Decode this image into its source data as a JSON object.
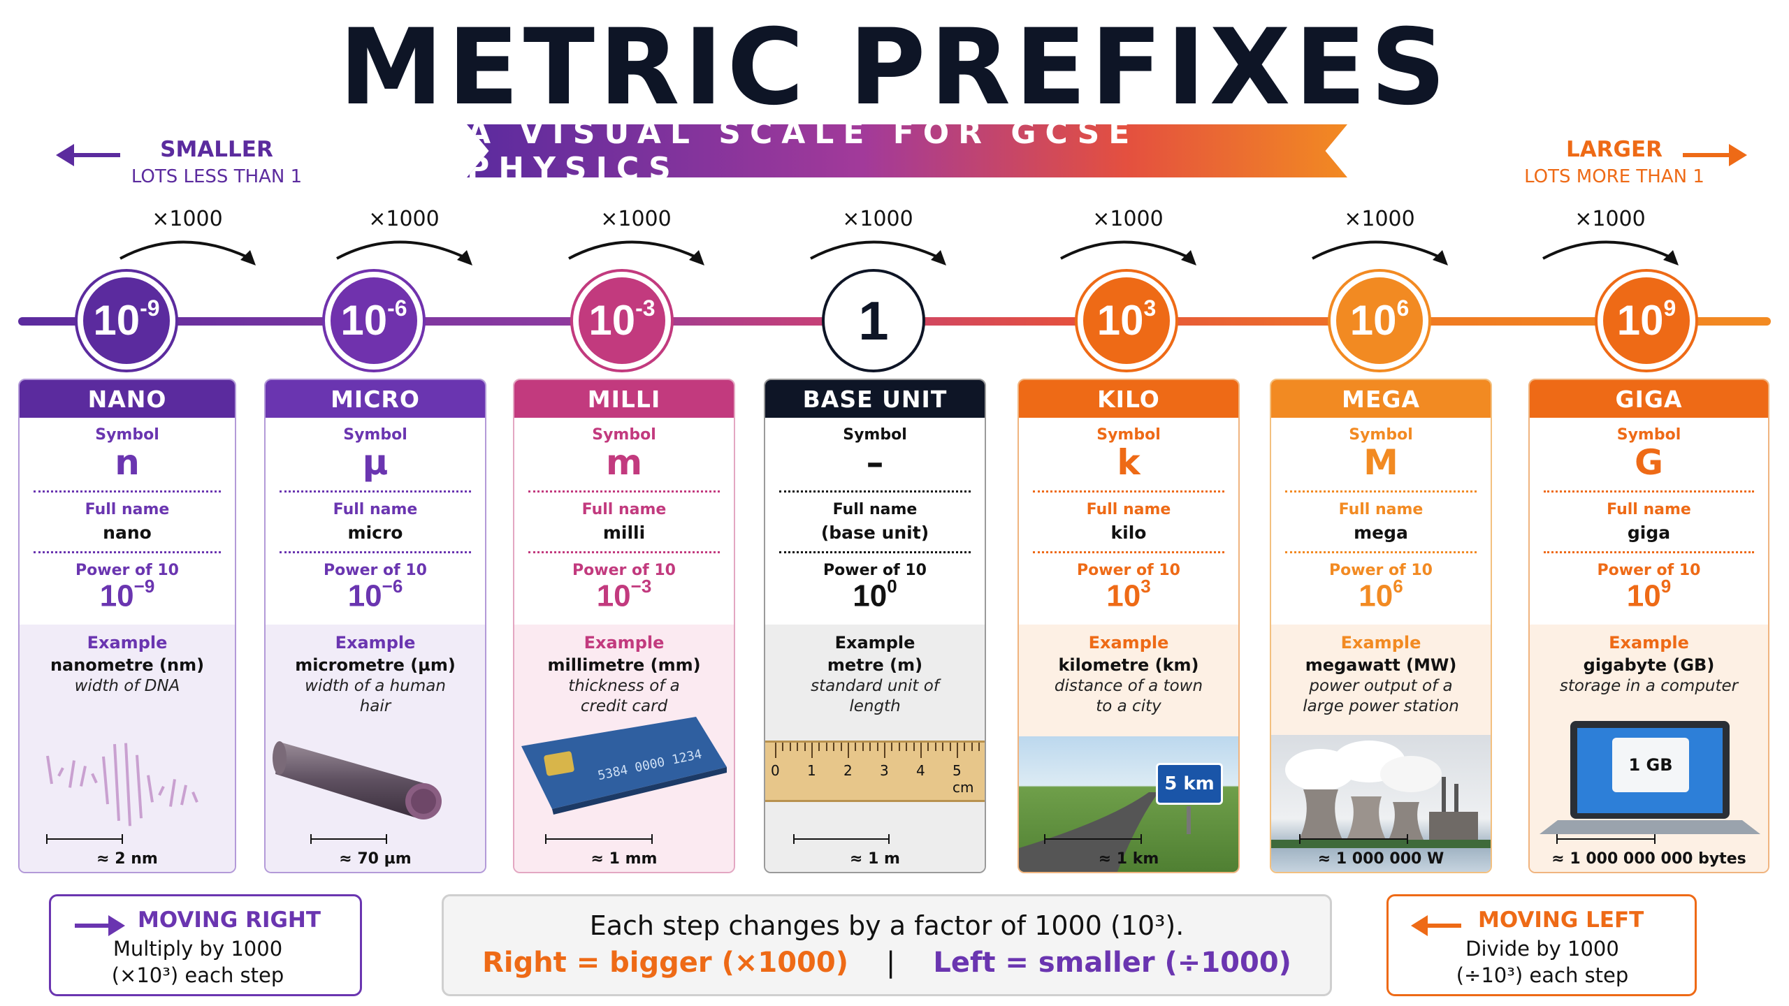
{
  "title": "METRIC PREFIXES",
  "subtitle": "A VISUAL SCALE FOR GCSE PHYSICS",
  "smaller": {
    "heading": "SMALLER",
    "sub": "LOTS LESS THAN 1"
  },
  "larger": {
    "heading": "LARGER",
    "sub": "LOTS MORE THAN 1"
  },
  "step_label": "×1000",
  "labels": {
    "symbol": "Symbol",
    "full_name": "Full name",
    "power": "Power of 10",
    "example": "Example"
  },
  "colors": {
    "purple": "#5b2b9e",
    "violet": "#6a35b0",
    "magenta": "#c23a7e",
    "black": "#0e1526",
    "orange": "#ee6a16",
    "amber": "#f28a22"
  },
  "prefixes": [
    {
      "node_base": "10",
      "node_exp": "-9",
      "header": "NANO",
      "symbol": "n",
      "full_name": "nano",
      "pow_base": "10",
      "pow_exp": "−9",
      "ex_name": "nanometre (nm)",
      "ex_desc": "width of DNA",
      "scale": "≈ 2 nm",
      "picture": "dna-helix-icon"
    },
    {
      "node_base": "10",
      "node_exp": "-6",
      "header": "MICRO",
      "symbol": "µ",
      "full_name": "micro",
      "pow_base": "10",
      "pow_exp": "−6",
      "ex_name": "micrometre (µm)",
      "ex_desc": "width of a human hair",
      "scale": "≈ 70 µm",
      "picture": "hair-strand-icon"
    },
    {
      "node_base": "10",
      "node_exp": "-3",
      "header": "MILLI",
      "symbol": "m",
      "full_name": "milli",
      "pow_base": "10",
      "pow_exp": "−3",
      "ex_name": "millimetre (mm)",
      "ex_desc": "thickness of a credit card",
      "scale": "≈ 1 mm",
      "picture": "credit-card-icon"
    },
    {
      "node_base": "1",
      "node_exp": "",
      "header": "BASE UNIT",
      "symbol": "–",
      "full_name": "(base unit)",
      "pow_base": "10",
      "pow_exp": "0",
      "ex_name": "metre (m)",
      "ex_desc": "standard unit of length",
      "scale": "≈ 1 m",
      "picture": "ruler-icon",
      "ruler_ticks": [
        "0",
        "1",
        "2",
        "3",
        "4",
        "5 cm"
      ]
    },
    {
      "node_base": "10",
      "node_exp": "3",
      "header": "KILO",
      "symbol": "k",
      "full_name": "kilo",
      "pow_base": "10",
      "pow_exp": "3",
      "ex_name": "kilometre (km)",
      "ex_desc": "distance of a town to a city",
      "scale": "≈ 1 km",
      "picture": "road-sign-icon",
      "sign": "5 km"
    },
    {
      "node_base": "10",
      "node_exp": "6",
      "header": "MEGA",
      "symbol": "M",
      "full_name": "mega",
      "pow_base": "10",
      "pow_exp": "6",
      "ex_name": "megawatt (MW)",
      "ex_desc": "power output of a large power station",
      "scale": "≈ 1 000 000 W",
      "picture": "power-station-icon"
    },
    {
      "node_base": "10",
      "node_exp": "9",
      "header": "GIGA",
      "symbol": "G",
      "full_name": "giga",
      "pow_base": "10",
      "pow_exp": "9",
      "ex_name": "gigabyte (GB)",
      "ex_desc": "storage in a computer",
      "scale": "≈ 1 000 000 000 bytes",
      "picture": "laptop-icon",
      "folder": "1 GB"
    }
  ],
  "moving_right": {
    "heading": "MOVING RIGHT",
    "line1": "Multiply by 1000",
    "line2": "(×10³) each step"
  },
  "moving_left": {
    "heading": "MOVING LEFT",
    "line1": "Divide by 1000",
    "line2": "(÷10³) each step"
  },
  "summary": {
    "line1": "Each step changes by a factor of 1000 (10³).",
    "right": "Right = bigger (×1000)",
    "sep": "|",
    "left": "Left = smaller (÷1000)"
  }
}
